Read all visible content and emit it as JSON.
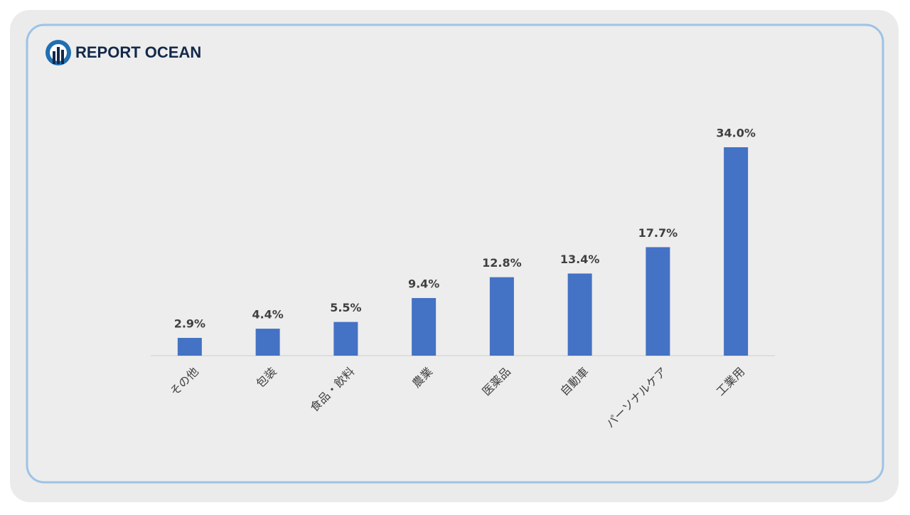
{
  "brand": "REPORT OCEAN",
  "chart_data": {
    "type": "bar",
    "categories": [
      "その他",
      "包装",
      "食品・飲料",
      "農業",
      "医薬品",
      "自動車",
      "パーソナルケア",
      "工業用"
    ],
    "values": [
      2.9,
      4.4,
      5.5,
      9.4,
      12.8,
      13.4,
      17.7,
      34.0
    ],
    "value_labels": [
      "2.9%",
      "4.4%",
      "5.5%",
      "9.4%",
      "12.8%",
      "13.4%",
      "17.7%",
      "34.0%"
    ],
    "color": "#4472c4",
    "ylim": [
      0,
      34
    ]
  }
}
